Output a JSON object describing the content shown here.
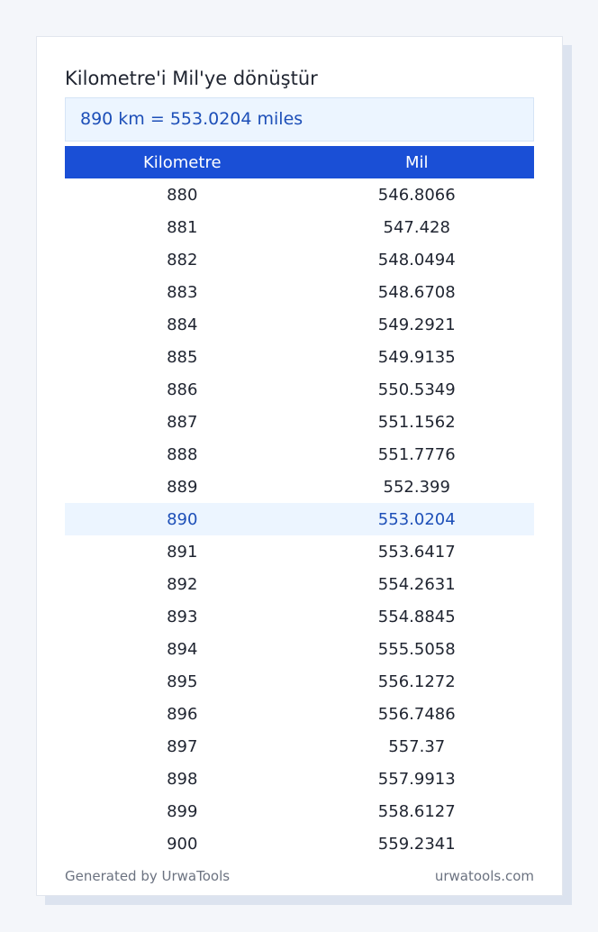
{
  "title": "Kilometre'i Mil'ye dönüştür",
  "result": "890 km = 553.0204 miles",
  "table": {
    "headers": [
      "Kilometre",
      "Mil"
    ],
    "rows": [
      [
        "880",
        "546.8066"
      ],
      [
        "881",
        "547.428"
      ],
      [
        "882",
        "548.0494"
      ],
      [
        "883",
        "548.6708"
      ],
      [
        "884",
        "549.2921"
      ],
      [
        "885",
        "549.9135"
      ],
      [
        "886",
        "550.5349"
      ],
      [
        "887",
        "551.1562"
      ],
      [
        "888",
        "551.7776"
      ],
      [
        "889",
        "552.399"
      ],
      [
        "890",
        "553.0204"
      ],
      [
        "891",
        "553.6417"
      ],
      [
        "892",
        "554.2631"
      ],
      [
        "893",
        "554.8845"
      ],
      [
        "894",
        "555.5058"
      ],
      [
        "895",
        "556.1272"
      ],
      [
        "896",
        "556.7486"
      ],
      [
        "897",
        "557.37"
      ],
      [
        "898",
        "557.9913"
      ],
      [
        "899",
        "558.6127"
      ],
      [
        "900",
        "559.2341"
      ]
    ],
    "highlight_row": 10
  },
  "footer": {
    "left": "Generated by UrwaTools",
    "right": "urwatools.com"
  },
  "colors": {
    "header_bg": "#1a4fd6",
    "highlight_bg": "#ecf5ff",
    "highlight_text": "#1d4fb8"
  }
}
